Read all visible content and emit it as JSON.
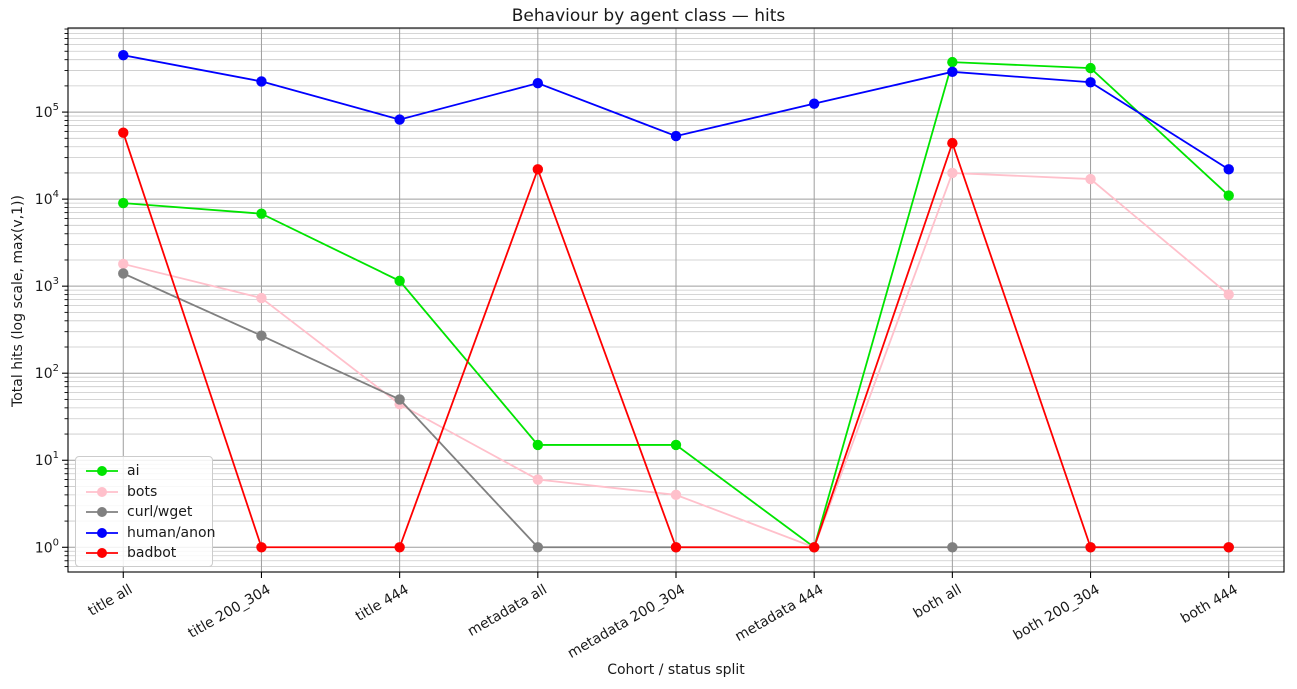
{
  "chart_data": {
    "type": "line",
    "title": "Behaviour by agent class — hits",
    "xlabel": "Cohort / status split",
    "ylabel": "Total hits (log scale, max(v,1))",
    "categories": [
      "title all",
      "title 200_304",
      "title 444",
      "metadata all",
      "metadata 200_304",
      "metadata 444",
      "both all",
      "both 200_304",
      "both 444"
    ],
    "series": [
      {
        "name": "ai",
        "color": "#00e400",
        "values": [
          9000,
          6800,
          1150,
          15,
          15,
          1,
          375000,
          320000,
          11000
        ]
      },
      {
        "name": "bots",
        "color": "#ffc0cb",
        "values": [
          1800,
          730,
          44,
          6,
          4,
          1,
          20000,
          17000,
          800
        ]
      },
      {
        "name": "curl/wget",
        "color": "#808080",
        "values": [
          1400,
          270,
          50,
          1,
          1,
          1,
          1,
          1,
          1
        ]
      },
      {
        "name": "human/anon",
        "color": "#0000ff",
        "values": [
          450000,
          225000,
          82000,
          215000,
          53000,
          125000,
          290000,
          220000,
          22000
        ]
      },
      {
        "name": "badbot",
        "color": "#ff0000",
        "values": [
          58000,
          1,
          1,
          22000,
          1,
          1,
          44000,
          1,
          1
        ]
      }
    ],
    "y_scale": "log",
    "y_tick_exponents": [
      0,
      1,
      2,
      3,
      4,
      5
    ],
    "ylim": [
      0.52,
      925000
    ],
    "grid": "both",
    "legend_position": "lower left",
    "x_tick_rotation_deg": 30
  },
  "colors": {
    "grid_major": "#9e9e9e",
    "grid_minor": "#c9c9c9",
    "spine": "#000000",
    "text": "#1a1a1a"
  }
}
